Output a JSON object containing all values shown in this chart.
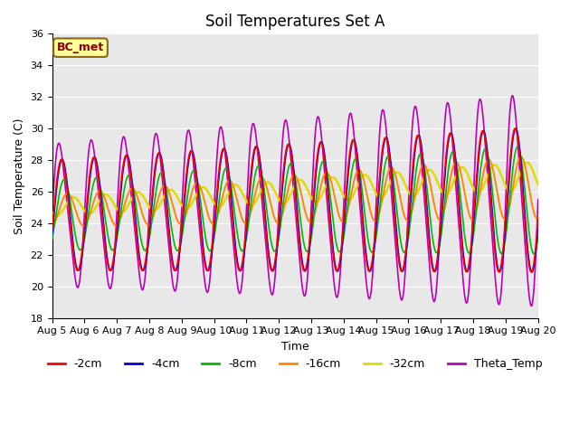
{
  "title": "Soil Temperatures Set A",
  "xlabel": "Time",
  "ylabel": "Soil Temperature (C)",
  "ylim": [
    18,
    36
  ],
  "yticks": [
    18,
    20,
    22,
    24,
    26,
    28,
    30,
    32,
    34,
    36
  ],
  "xtick_labels": [
    "Aug 5",
    "Aug 6",
    "Aug 7",
    "Aug 8",
    "Aug 9",
    "Aug 10",
    "Aug 11",
    "Aug 12",
    "Aug 13",
    "Aug 14",
    "Aug 15",
    "Aug 16",
    "Aug 17",
    "Aug 18",
    "Aug 19",
    "Aug 20"
  ],
  "series_colors": {
    "-2cm": "#ff0000",
    "-4cm": "#0000dd",
    "-8cm": "#00bb00",
    "-16cm": "#ff8800",
    "-32cm": "#dddd00",
    "Theta_Temp": "#bb00bb"
  },
  "series_linewidths": {
    "-2cm": 1.2,
    "-4cm": 1.2,
    "-8cm": 1.2,
    "-16cm": 1.4,
    "-32cm": 1.8,
    "Theta_Temp": 1.2
  },
  "annotation_text": "BC_met",
  "annotation_color": "#8B0000",
  "annotation_bg": "#ffff99",
  "annotation_border": "#8B6914",
  "background_color": "#e8e8e8",
  "fig_bg": "#ffffff",
  "grid_color": "#ffffff",
  "title_fontsize": 12,
  "label_fontsize": 9,
  "tick_fontsize": 8,
  "legend_fontsize": 9
}
